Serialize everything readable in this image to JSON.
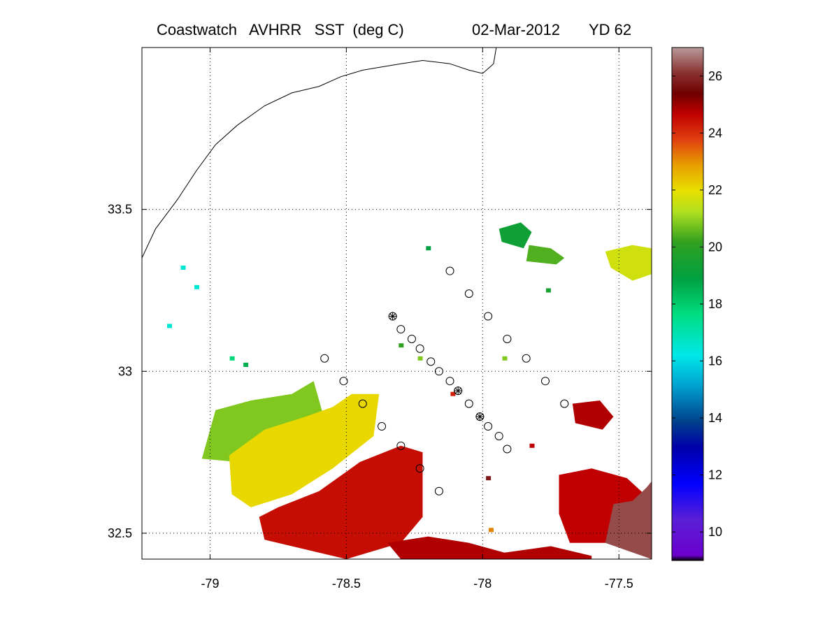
{
  "title": {
    "product": "Coastwatch   AVHRR   SST  (deg C)",
    "date": "02-Mar-2012",
    "yearday": "YD 62"
  },
  "chart_data": {
    "type": "heatmap",
    "xlim": [
      -79.25,
      -77.38
    ],
    "ylim": [
      32.42,
      34.0
    ],
    "xticks": [
      -79,
      -78.5,
      -78,
      -77.5
    ],
    "xtick_labels": [
      "-79",
      "-78.5",
      "-78",
      "-77.5"
    ],
    "yticks": [
      32.5,
      33,
      33.5
    ],
    "ytick_labels": [
      "32.5",
      "33",
      "33.5"
    ],
    "grid": true,
    "colorbar": {
      "range": [
        9,
        27
      ],
      "ticks": [
        10,
        12,
        14,
        16,
        18,
        20,
        22,
        24,
        26
      ],
      "tick_labels": [
        "10",
        "12",
        "14",
        "16",
        "18",
        "20",
        "22",
        "24",
        "26"
      ]
    },
    "sst_regions": [
      {
        "name": "cool-northwest-patch",
        "sst": 19.5,
        "poly": [
          [
            -78.98,
            32.88
          ],
          [
            -78.85,
            32.91
          ],
          [
            -78.7,
            32.93
          ],
          [
            -78.62,
            32.97
          ],
          [
            -78.58,
            32.85
          ],
          [
            -78.9,
            32.72
          ],
          [
            -79.03,
            32.73
          ]
        ]
      },
      {
        "name": "yellow-core",
        "sst": 20.6,
        "poly": [
          [
            -78.93,
            32.74
          ],
          [
            -78.8,
            32.82
          ],
          [
            -78.65,
            32.86
          ],
          [
            -78.55,
            32.89
          ],
          [
            -78.48,
            32.93
          ],
          [
            -78.38,
            32.93
          ],
          [
            -78.4,
            32.8
          ],
          [
            -78.55,
            32.7
          ],
          [
            -78.7,
            32.62
          ],
          [
            -78.85,
            32.58
          ],
          [
            -78.92,
            32.62
          ]
        ]
      },
      {
        "name": "warm-front",
        "sst": 22.8,
        "poly": [
          [
            -78.75,
            32.58
          ],
          [
            -78.6,
            32.63
          ],
          [
            -78.45,
            32.72
          ],
          [
            -78.3,
            32.77
          ],
          [
            -78.22,
            32.75
          ],
          [
            -78.22,
            32.55
          ],
          [
            -78.3,
            32.47
          ],
          [
            -78.5,
            32.42
          ],
          [
            -78.8,
            32.48
          ],
          [
            -78.82,
            32.55
          ]
        ]
      },
      {
        "name": "southern-strip",
        "sst": 23.2,
        "poly": [
          [
            -78.35,
            32.47
          ],
          [
            -78.2,
            32.49
          ],
          [
            -78.05,
            32.47
          ],
          [
            -77.92,
            32.44
          ],
          [
            -77.75,
            32.46
          ],
          [
            -77.6,
            32.43
          ],
          [
            -77.6,
            32.42
          ],
          [
            -78.3,
            32.42
          ]
        ]
      },
      {
        "name": "southeast-warm",
        "sst": 23.0,
        "poly": [
          [
            -77.72,
            32.68
          ],
          [
            -77.6,
            32.7
          ],
          [
            -77.47,
            32.67
          ],
          [
            -77.38,
            32.6
          ],
          [
            -77.38,
            32.47
          ],
          [
            -77.68,
            32.47
          ],
          [
            -77.72,
            32.56
          ]
        ]
      },
      {
        "name": "southeast-brown",
        "sst": 25.5,
        "poly": [
          [
            -77.52,
            32.59
          ],
          [
            -77.45,
            32.6
          ],
          [
            -77.4,
            32.64
          ],
          [
            -77.38,
            32.66
          ],
          [
            -77.38,
            32.42
          ],
          [
            -77.55,
            32.47
          ]
        ]
      },
      {
        "name": "east-red-blob",
        "sst": 23.2,
        "poly": [
          [
            -77.67,
            32.9
          ],
          [
            -77.57,
            32.91
          ],
          [
            -77.52,
            32.86
          ],
          [
            -77.56,
            32.82
          ],
          [
            -77.66,
            32.84
          ]
        ]
      },
      {
        "name": "northeast-yellow",
        "sst": 20.2,
        "poly": [
          [
            -77.55,
            33.37
          ],
          [
            -77.45,
            33.39
          ],
          [
            -77.38,
            33.38
          ],
          [
            -77.38,
            33.3
          ],
          [
            -77.45,
            33.28
          ],
          [
            -77.53,
            33.32
          ]
        ]
      },
      {
        "name": "northeast-green",
        "sst": 19.2,
        "poly": [
          [
            -77.83,
            33.39
          ],
          [
            -77.75,
            33.38
          ],
          [
            -77.7,
            33.35
          ],
          [
            -77.73,
            33.33
          ],
          [
            -77.84,
            33.34
          ]
        ]
      },
      {
        "name": "northeast-dark-green",
        "sst": 18.3,
        "poly": [
          [
            -77.94,
            33.44
          ],
          [
            -77.86,
            33.46
          ],
          [
            -77.82,
            33.43
          ],
          [
            -77.85,
            33.38
          ],
          [
            -77.93,
            33.4
          ]
        ]
      }
    ],
    "sst_pixels": [
      {
        "lon": -79.1,
        "lat": 33.32,
        "sst": 15.2
      },
      {
        "lon": -79.05,
        "lat": 33.26,
        "sst": 15.2
      },
      {
        "lon": -79.15,
        "lat": 33.14,
        "sst": 15.2
      },
      {
        "lon": -78.92,
        "lat": 33.04,
        "sst": 16.2
      },
      {
        "lon": -78.87,
        "lat": 33.02,
        "sst": 17.5
      },
      {
        "lon": -78.3,
        "lat": 33.08,
        "sst": 19.0
      },
      {
        "lon": -78.23,
        "lat": 33.04,
        "sst": 19.5
      },
      {
        "lon": -78.11,
        "lat": 32.93,
        "sst": 22.5
      },
      {
        "lon": -77.98,
        "lat": 32.67,
        "sst": 24.5
      },
      {
        "lon": -77.92,
        "lat": 33.04,
        "sst": 19.5
      },
      {
        "lon": -77.97,
        "lat": 32.51,
        "sst": 21.5
      },
      {
        "lon": -78.2,
        "lat": 33.38,
        "sst": 18.0
      },
      {
        "lon": -77.82,
        "lat": 32.77,
        "sst": 23.0
      },
      {
        "lon": -77.76,
        "lat": 33.25,
        "sst": 18.5
      }
    ],
    "stations": [
      {
        "lon": -78.58,
        "lat": 33.04,
        "marker": "circle"
      },
      {
        "lon": -78.51,
        "lat": 32.97,
        "marker": "circle"
      },
      {
        "lon": -78.44,
        "lat": 32.9,
        "marker": "circle"
      },
      {
        "lon": -78.37,
        "lat": 32.83,
        "marker": "circle"
      },
      {
        "lon": -78.3,
        "lat": 32.77,
        "marker": "circle"
      },
      {
        "lon": -78.23,
        "lat": 32.7,
        "marker": "circle"
      },
      {
        "lon": -78.16,
        "lat": 32.63,
        "marker": "circle"
      },
      {
        "lon": -78.12,
        "lat": 33.31,
        "marker": "circle"
      },
      {
        "lon": -78.05,
        "lat": 33.24,
        "marker": "circle"
      },
      {
        "lon": -77.98,
        "lat": 33.17,
        "marker": "circle"
      },
      {
        "lon": -77.91,
        "lat": 33.1,
        "marker": "circle"
      },
      {
        "lon": -77.84,
        "lat": 33.04,
        "marker": "circle"
      },
      {
        "lon": -77.77,
        "lat": 32.97,
        "marker": "circle"
      },
      {
        "lon": -77.7,
        "lat": 32.9,
        "marker": "circle"
      },
      {
        "lon": -78.33,
        "lat": 33.17,
        "marker": "star"
      },
      {
        "lon": -78.3,
        "lat": 33.13,
        "marker": "circle"
      },
      {
        "lon": -78.26,
        "lat": 33.1,
        "marker": "circle"
      },
      {
        "lon": -78.23,
        "lat": 33.07,
        "marker": "circle"
      },
      {
        "lon": -78.19,
        "lat": 33.03,
        "marker": "circle"
      },
      {
        "lon": -78.16,
        "lat": 33.0,
        "marker": "circle"
      },
      {
        "lon": -78.12,
        "lat": 32.97,
        "marker": "circle"
      },
      {
        "lon": -78.09,
        "lat": 32.94,
        "marker": "star"
      },
      {
        "lon": -78.05,
        "lat": 32.9,
        "marker": "circle"
      },
      {
        "lon": -78.01,
        "lat": 32.86,
        "marker": "star"
      },
      {
        "lon": -77.98,
        "lat": 32.83,
        "marker": "circle"
      },
      {
        "lon": -77.94,
        "lat": 32.8,
        "marker": "circle"
      },
      {
        "lon": -77.91,
        "lat": 32.76,
        "marker": "circle"
      }
    ],
    "coastline": [
      [
        -79.25,
        33.35
      ],
      [
        -79.2,
        33.44
      ],
      [
        -79.12,
        33.53
      ],
      [
        -79.05,
        33.62
      ],
      [
        -78.98,
        33.7
      ],
      [
        -78.9,
        33.76
      ],
      [
        -78.8,
        33.82
      ],
      [
        -78.7,
        33.86
      ],
      [
        -78.6,
        33.88
      ],
      [
        -78.52,
        33.91
      ],
      [
        -78.44,
        33.93
      ],
      [
        -78.37,
        33.94
      ],
      [
        -78.3,
        33.95
      ],
      [
        -78.22,
        33.96
      ],
      [
        -78.12,
        33.95
      ],
      [
        -78.05,
        33.93
      ],
      [
        -78.0,
        33.92
      ],
      [
        -77.96,
        33.95
      ],
      [
        -77.95,
        34.0
      ]
    ]
  }
}
